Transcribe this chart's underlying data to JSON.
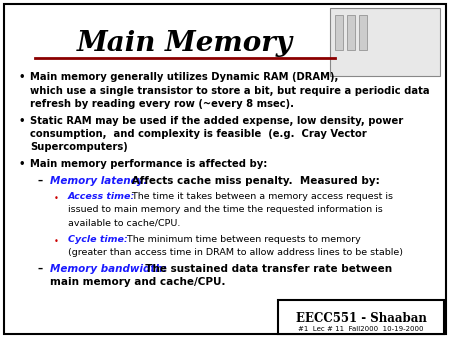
{
  "title": "Main Memory",
  "title_color": "#000000",
  "title_underline_color": "#8B0000",
  "background_color": "#FFFFFF",
  "border_color": "#000000",
  "footer_text": "EECC551 - Shaaban",
  "footer_subtext": "#1  Lec # 11  Fall2000  10-19-2000",
  "bullet_color": "#000000",
  "blue_color": "#1a1aff",
  "red_bullet_color": "#CC0000",
  "body_text_color": "#000000",
  "bullets": [
    {
      "level": 0,
      "lines": [
        {
          "text": "Main memory generally utilizes Dynamic RAM (DRAM),",
          "bold": true
        },
        {
          "text": "which use a single transistor to store a bit, but require a periodic data",
          "bold": true
        },
        {
          "text": "refresh by reading every row (~every 8 msec).",
          "bold": true
        }
      ]
    },
    {
      "level": 0,
      "lines": [
        {
          "text": "Static RAM may be used if the added expense, low density, power",
          "bold": true
        },
        {
          "text": "consumption,  and complexity is feasible  (e.g.  Cray Vector",
          "bold": true
        },
        {
          "text": "Supercomputers)",
          "bold": true
        }
      ]
    },
    {
      "level": 0,
      "lines": [
        {
          "text": "Main memory performance is affected by:",
          "bold": true
        }
      ]
    },
    {
      "level": 1,
      "blue_part": "Memory latency:",
      "rest": " Affects cache miss penalty.  Measured by:"
    },
    {
      "level": 2,
      "blue_part": "Access time:",
      "rest": "  The time it takes between a memory access request is",
      "extra_lines": [
        "issued to main memory and the time the requested information is",
        "available to cache/CPU."
      ]
    },
    {
      "level": 2,
      "blue_part": "Cycle time:",
      "rest": "  The minimum time between requests to memory",
      "extra_lines": [
        "(greater than access time in DRAM to allow address lines to be stable)"
      ]
    },
    {
      "level": 1,
      "blue_part": "Memory bandwidth:",
      "rest": "  The sustained data transfer rate between",
      "extra_lines": [
        "main memory and cache/CPU."
      ]
    }
  ]
}
